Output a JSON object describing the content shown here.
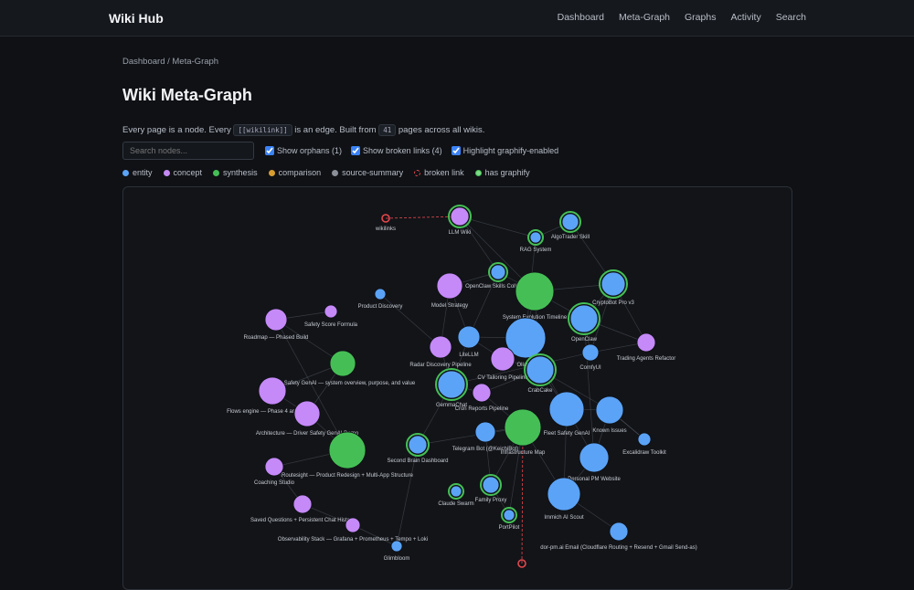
{
  "nav": {
    "brand": "Wiki Hub",
    "links": [
      "Dashboard",
      "Meta-Graph",
      "Graphs",
      "Activity",
      "Search"
    ]
  },
  "breadcrumb": "Dashboard / Meta-Graph",
  "title": "Wiki Meta-Graph",
  "description": {
    "intro": "Every page is a node. Every",
    "code": "[[wikilink]]",
    "middle": "is an edge. Built from",
    "count": "41",
    "tail": "pages across all wikis."
  },
  "controls": {
    "search_placeholder": "Search nodes...",
    "checkboxes": [
      "Show orphans (1)",
      "Show broken links (4)",
      "Highlight graphify-enabled"
    ]
  },
  "legend": [
    {
      "label": "entity",
      "color": "#5ba3f7"
    },
    {
      "label": "concept",
      "color": "#c589f8"
    },
    {
      "label": "synthesis",
      "color": "#45bf55"
    },
    {
      "label": "comparison",
      "color": "#d69e2e"
    },
    {
      "label": "source-summary",
      "color": "#8a8f98"
    },
    {
      "label": "broken link",
      "color": "#e5484d"
    },
    {
      "label": "has graphify",
      "color": "#45bf55"
    }
  ],
  "graph": {
    "nodes": [
      {
        "label": "wikilinks",
        "type": "broken link"
      },
      {
        "label": "LLM Wiki",
        "type": "concept",
        "graphify": true
      },
      {
        "label": "AlgoTrader Skill",
        "type": "entity",
        "graphify": true
      },
      {
        "label": "RAG System",
        "type": "entity",
        "graphify": true
      },
      {
        "label": "OpenClaw Skills Collection",
        "type": "entity",
        "graphify": true
      },
      {
        "label": "Model Strategy",
        "type": "concept"
      },
      {
        "label": "System Evolution Timeline",
        "type": "synthesis"
      },
      {
        "label": "CryptoBot Pro v3",
        "type": "entity",
        "graphify": true
      },
      {
        "label": "Product Discovery",
        "type": "entity"
      },
      {
        "label": "Safety Score Formula",
        "type": "concept"
      },
      {
        "label": "Roadmap — Phased Build",
        "type": "concept"
      },
      {
        "label": "OpenClaw",
        "type": "entity",
        "graphify": true
      },
      {
        "label": "LiteLLM",
        "type": "entity"
      },
      {
        "label": "Ollama",
        "type": "entity"
      },
      {
        "label": "Trading Agents Refactor",
        "type": "concept"
      },
      {
        "label": "Radar Discovery Pipeline",
        "type": "concept"
      },
      {
        "label": "ComfyUI",
        "type": "entity"
      },
      {
        "label": "CV Tailoring Pipeline",
        "type": "concept"
      },
      {
        "label": "CrabCake",
        "type": "entity",
        "graphify": true
      },
      {
        "label": "Fleet Safety GenAI — system overview, purpose, and value",
        "type": "synthesis"
      },
      {
        "label": "GemmaChat",
        "type": "entity",
        "graphify": true
      },
      {
        "label": "Flows engine — Phase 4 architecture",
        "type": "concept"
      },
      {
        "label": "Cron Reports Pipeline",
        "type": "concept"
      },
      {
        "label": "Fleet Safety GenAI",
        "type": "entity"
      },
      {
        "label": "Known Issues",
        "type": "entity"
      },
      {
        "label": "Architecture — Driver Safety GenAI Demo",
        "type": "concept"
      },
      {
        "label": "Infrastructure Map",
        "type": "synthesis"
      },
      {
        "label": "Telegram Bot (@KeichiBot)",
        "type": "entity"
      },
      {
        "label": "Excalidraw Toolkit",
        "type": "entity"
      },
      {
        "label": "Second Brain Dashboard",
        "type": "entity",
        "graphify": true
      },
      {
        "label": "Routesight — Product Redesign + Multi-App Structure",
        "type": "synthesis"
      },
      {
        "label": "Personal PM Website",
        "type": "entity"
      },
      {
        "label": "Coaching Studio",
        "type": "concept"
      },
      {
        "label": "Family Proxy",
        "type": "entity",
        "graphify": true
      },
      {
        "label": "Claude Swarm",
        "type": "entity",
        "graphify": true
      },
      {
        "label": "Immich AI Scout",
        "type": "entity"
      },
      {
        "label": "Saved Questions + Persistent Chat History",
        "type": "concept"
      },
      {
        "label": "PortPilot",
        "type": "entity",
        "graphify": true
      },
      {
        "label": "Observability Stack — Grafana + Prometheus + Tempo + Loki",
        "type": "concept"
      },
      {
        "label": "dor-pm.ai Email (Cloudflare Routing + Resend + Gmail Send-as)",
        "type": "entity"
      },
      {
        "label": "Glimbloom",
        "type": "entity"
      },
      {
        "type": "broken link"
      }
    ]
  }
}
